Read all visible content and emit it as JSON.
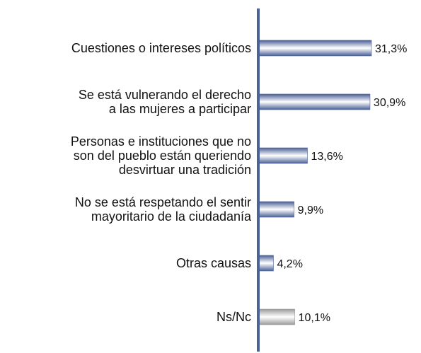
{
  "chart_data": {
    "type": "barh",
    "categories": [
      "Cuestiones o intereses políticos",
      "Se está vulnerando el derecho\na las mujeres a participar",
      "Personas e instituciones que no\nson del pueblo están queriendo\ndesvirtuar una tradición",
      "No se está respetando el sentir\nmayoritario de la ciudadanía",
      "Otras causas",
      "Ns/Nc"
    ],
    "values": [
      31.3,
      30.9,
      13.6,
      9.9,
      4.2,
      10.1
    ],
    "value_labels": [
      "31,3%",
      "30,9%",
      "13,6%",
      "9,9%",
      "4,2%",
      "10,1%"
    ],
    "colors": [
      "#4a5f95",
      "#4a5f95",
      "#4a5f95",
      "#4a5f95",
      "#4a5f95",
      "#9a9a9a"
    ],
    "xlim": [
      0,
      45
    ]
  }
}
